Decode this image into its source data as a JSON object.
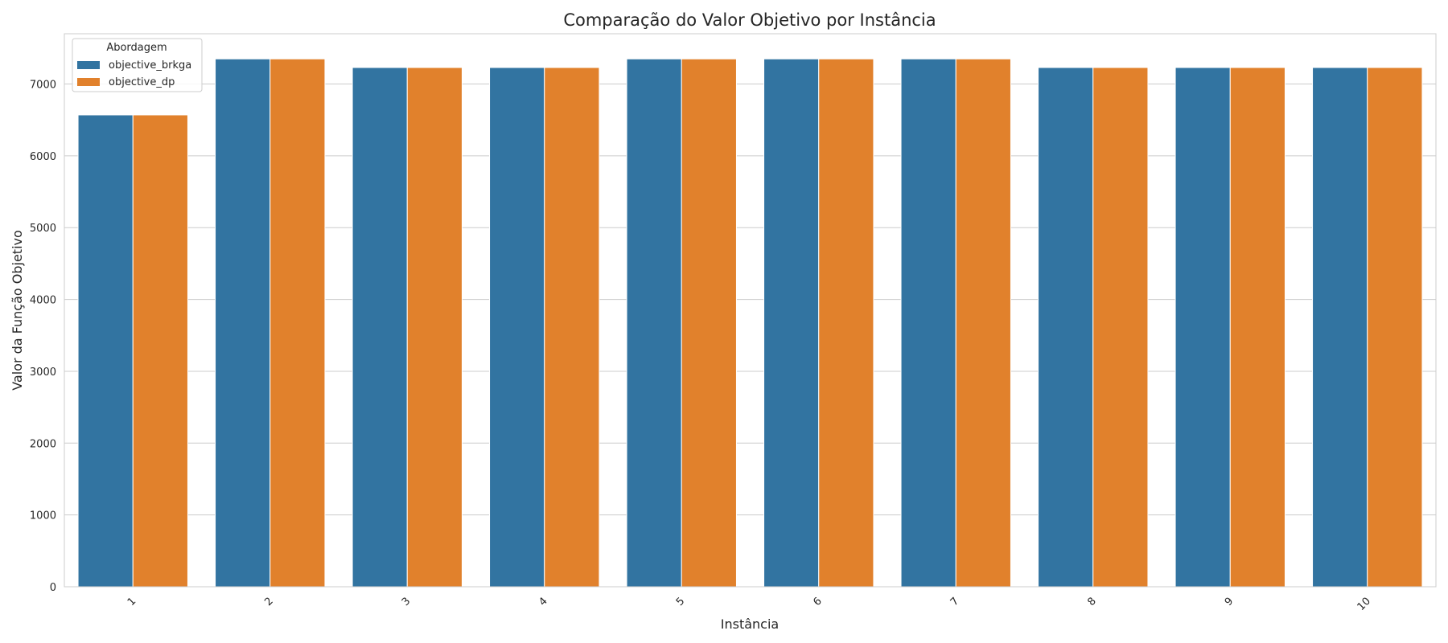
{
  "chart_data": {
    "type": "bar",
    "title": "Comparação do Valor Objetivo por Instância",
    "xlabel": "Instância",
    "ylabel": "Valor da Função Objetivo",
    "categories": [
      "1",
      "2",
      "3",
      "4",
      "5",
      "6",
      "7",
      "8",
      "9",
      "10"
    ],
    "series": [
      {
        "name": "objective_brkga",
        "color": "#3274a1",
        "values": [
          6570,
          7350,
          7230,
          7230,
          7350,
          7350,
          7350,
          7230,
          7230,
          7230
        ]
      },
      {
        "name": "objective_dp",
        "color": "#e1812c",
        "values": [
          6570,
          7350,
          7230,
          7230,
          7350,
          7350,
          7350,
          7230,
          7230,
          7230
        ]
      }
    ],
    "ylim": [
      0,
      7700
    ],
    "yticks": [
      "0",
      "1000",
      "2000",
      "3000",
      "4000",
      "5000",
      "6000",
      "7000"
    ],
    "grid": true,
    "legend": {
      "title": "Abordagem",
      "placement": "top-left"
    }
  }
}
